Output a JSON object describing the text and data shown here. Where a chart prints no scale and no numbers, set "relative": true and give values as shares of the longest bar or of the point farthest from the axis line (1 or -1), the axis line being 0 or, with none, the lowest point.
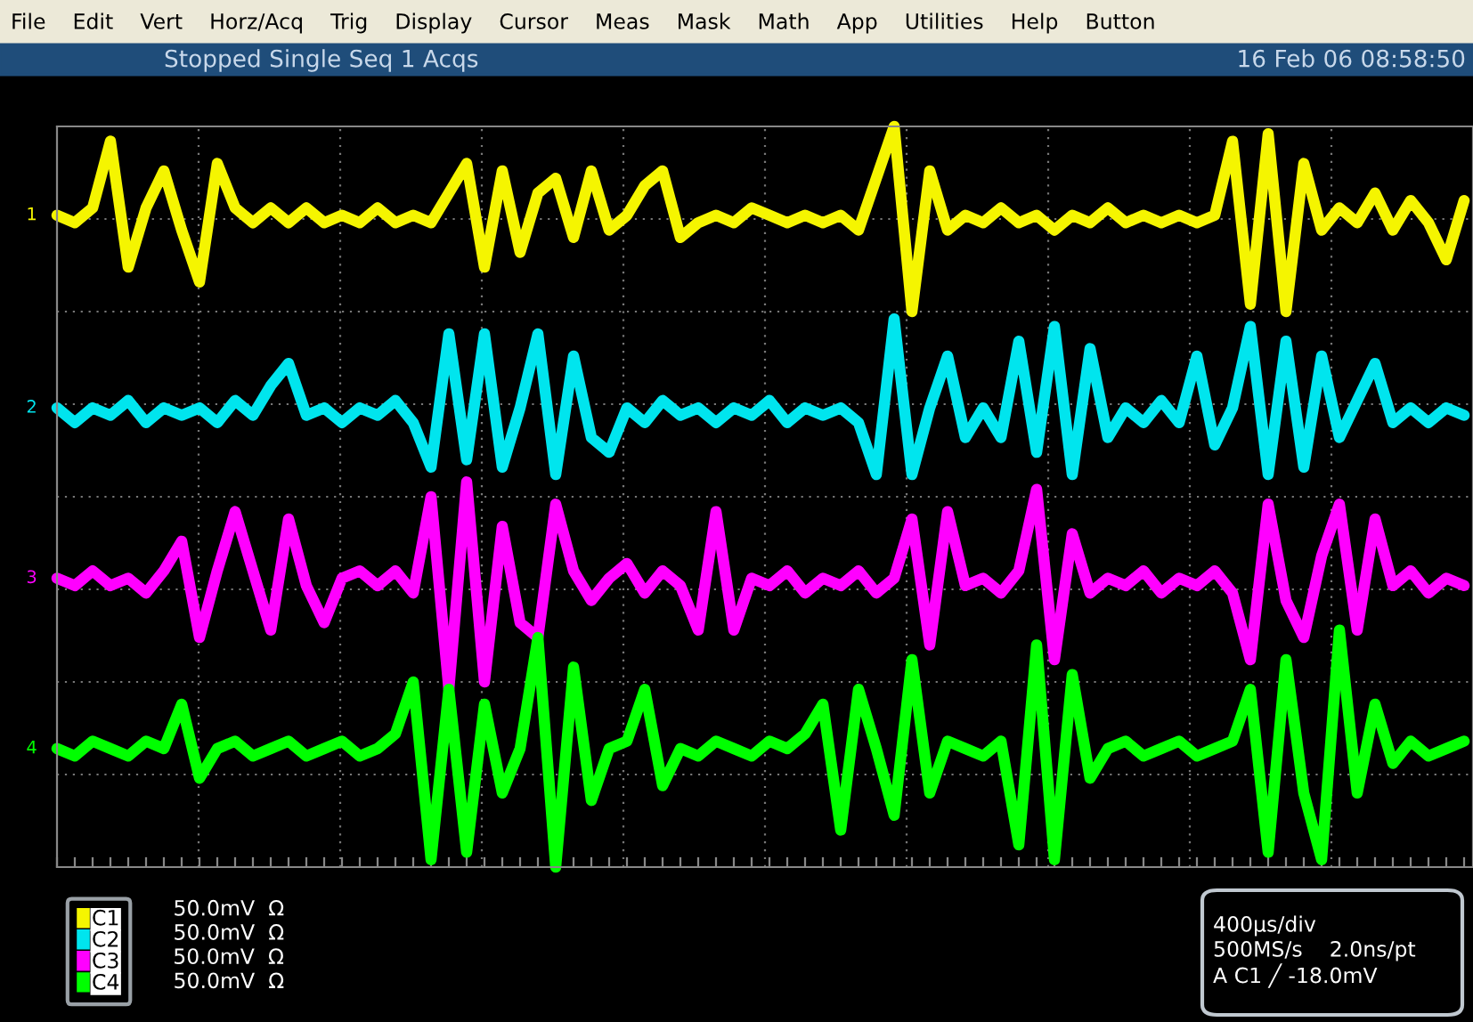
{
  "chart_data": {
    "type": "line",
    "relative": true,
    "title": "Stopped Single Seq 1 Acqs",
    "subtitle": "16 Feb 06 08:58:50",
    "categories": [
      null,
      null,
      null,
      null,
      null,
      null,
      null,
      null,
      null,
      null,
      null,
      null,
      null,
      null,
      null,
      null,
      null,
      null,
      null,
      null,
      null,
      null,
      null,
      null,
      null,
      null,
      null,
      null,
      null,
      null,
      null,
      null,
      null,
      null,
      null,
      null,
      null,
      null,
      null,
      null,
      null,
      null,
      null,
      null,
      null,
      null,
      null,
      null,
      null,
      null,
      null,
      null,
      null,
      null,
      null,
      null,
      null,
      null,
      null,
      null,
      null,
      null,
      null,
      null,
      null,
      null,
      null,
      null,
      null,
      null,
      null,
      null,
      null,
      null,
      null,
      null,
      null,
      null,
      null,
      null
    ],
    "series": [
      {
        "name": "C1",
        "color": "#f5f500",
        "values": [
          0.88,
          0.87,
          0.89,
          0.98,
          0.81,
          0.89,
          0.94,
          0.86,
          0.79,
          0.95,
          0.89,
          0.87,
          0.89,
          0.87,
          0.89,
          0.87,
          0.88,
          0.87,
          0.89,
          0.87,
          0.88,
          0.87,
          0.91,
          0.95,
          0.81,
          0.94,
          0.83,
          0.91,
          0.93,
          0.85,
          0.94,
          0.86,
          0.88,
          0.92,
          0.94,
          0.85,
          0.87,
          0.88,
          0.87,
          0.89,
          0.88,
          0.87,
          0.88,
          0.87,
          0.88,
          0.86,
          0.93,
          1.0,
          0.75,
          0.94,
          0.86,
          0.88,
          0.87,
          0.89,
          0.87,
          0.88,
          0.86,
          0.88,
          0.87,
          0.89,
          0.87,
          0.88,
          0.87,
          0.88,
          0.87,
          0.88,
          0.98,
          0.76,
          0.99,
          0.75,
          0.95,
          0.86,
          0.89,
          0.87,
          0.91,
          0.86,
          0.9,
          0.87,
          0.82,
          0.9
        ]
      },
      {
        "name": "C2",
        "color": "#00e5ee",
        "values": [
          0.62,
          0.6,
          0.62,
          0.61,
          0.63,
          0.6,
          0.62,
          0.61,
          0.62,
          0.6,
          0.63,
          0.61,
          0.65,
          0.68,
          0.61,
          0.62,
          0.6,
          0.62,
          0.61,
          0.63,
          0.6,
          0.54,
          0.72,
          0.55,
          0.72,
          0.54,
          0.62,
          0.72,
          0.53,
          0.69,
          0.58,
          0.56,
          0.62,
          0.6,
          0.63,
          0.61,
          0.62,
          0.6,
          0.62,
          0.61,
          0.63,
          0.6,
          0.62,
          0.61,
          0.62,
          0.6,
          0.53,
          0.74,
          0.53,
          0.62,
          0.69,
          0.58,
          0.62,
          0.58,
          0.71,
          0.56,
          0.73,
          0.53,
          0.7,
          0.58,
          0.62,
          0.6,
          0.63,
          0.6,
          0.69,
          0.57,
          0.62,
          0.73,
          0.53,
          0.71,
          0.54,
          0.69,
          0.58,
          0.63,
          0.68,
          0.6,
          0.62,
          0.6,
          0.62,
          0.61
        ]
      },
      {
        "name": "C3",
        "color": "#ff00ff",
        "values": [
          0.39,
          0.38,
          0.4,
          0.38,
          0.39,
          0.37,
          0.4,
          0.44,
          0.31,
          0.4,
          0.48,
          0.4,
          0.32,
          0.47,
          0.38,
          0.33,
          0.39,
          0.4,
          0.38,
          0.4,
          0.37,
          0.5,
          0.24,
          0.52,
          0.25,
          0.46,
          0.33,
          0.31,
          0.49,
          0.4,
          0.36,
          0.39,
          0.41,
          0.37,
          0.4,
          0.38,
          0.32,
          0.48,
          0.32,
          0.39,
          0.38,
          0.4,
          0.37,
          0.39,
          0.38,
          0.4,
          0.37,
          0.39,
          0.47,
          0.3,
          0.48,
          0.38,
          0.39,
          0.37,
          0.4,
          0.51,
          0.28,
          0.45,
          0.37,
          0.39,
          0.38,
          0.4,
          0.37,
          0.39,
          0.38,
          0.4,
          0.37,
          0.28,
          0.49,
          0.36,
          0.31,
          0.42,
          0.49,
          0.32,
          0.47,
          0.38,
          0.4,
          0.37,
          0.39,
          0.38
        ]
      },
      {
        "name": "C4",
        "color": "#00ff00",
        "values": [
          0.16,
          0.15,
          0.17,
          0.16,
          0.15,
          0.17,
          0.16,
          0.22,
          0.12,
          0.16,
          0.17,
          0.15,
          0.16,
          0.17,
          0.15,
          0.16,
          0.17,
          0.15,
          0.16,
          0.18,
          0.25,
          0.01,
          0.24,
          0.02,
          0.22,
          0.1,
          0.16,
          0.31,
          0.0,
          0.27,
          0.09,
          0.16,
          0.17,
          0.24,
          0.11,
          0.16,
          0.15,
          0.17,
          0.16,
          0.15,
          0.17,
          0.16,
          0.18,
          0.22,
          0.05,
          0.24,
          0.16,
          0.07,
          0.28,
          0.1,
          0.17,
          0.16,
          0.15,
          0.17,
          0.03,
          0.3,
          0.01,
          0.26,
          0.12,
          0.16,
          0.17,
          0.15,
          0.16,
          0.17,
          0.15,
          0.16,
          0.17,
          0.24,
          0.02,
          0.28,
          0.1,
          0.01,
          0.32,
          0.1,
          0.22,
          0.14,
          0.17,
          0.15,
          0.16,
          0.17
        ]
      }
    ],
    "annotations": [
      "File Edit Vert Horz/Acq Trig Display Cursor Meas Mask Math App Utilities Help Button",
      "50.0mV  Ω",
      "50.0mV  Ω",
      "50.0mV  Ω",
      "50.0mV  Ω",
      "400µs/div",
      "500MS/s    2.0ns/pt",
      "A C1 ╱ -18.0mV",
      "1",
      "2",
      "3",
      "4"
    ],
    "grid": true,
    "legend": "bottom left"
  }
}
